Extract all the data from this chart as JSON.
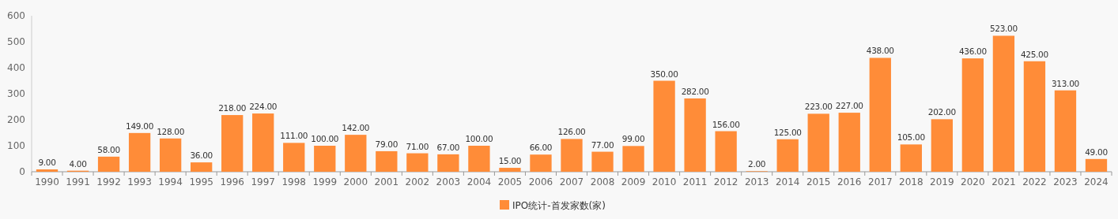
{
  "chart_data": {
    "type": "bar",
    "categories": [
      "1990",
      "1991",
      "1992",
      "1993",
      "1994",
      "1995",
      "1996",
      "1997",
      "1998",
      "1999",
      "2000",
      "2001",
      "2002",
      "2003",
      "2004",
      "2005",
      "2006",
      "2007",
      "2008",
      "2009",
      "2010",
      "2011",
      "2012",
      "2013",
      "2014",
      "2015",
      "2016",
      "2017",
      "2018",
      "2019",
      "2020",
      "2021",
      "2022",
      "2023",
      "2024"
    ],
    "series": [
      {
        "name": "IPO统计-首发家数(家)",
        "color": "#ff8c38",
        "values": [
          9,
          4,
          58,
          149,
          128,
          36,
          218,
          224,
          111,
          100,
          142,
          79,
          71,
          67,
          100,
          15,
          66,
          126,
          77,
          99,
          350,
          282,
          156,
          2,
          125,
          223,
          227,
          438,
          105,
          202,
          436,
          523,
          425,
          313,
          49
        ],
        "value_labels": [
          "9.00",
          "4.00",
          "58.00",
          "149.00",
          "128.00",
          "36.00",
          "218.00",
          "224.00",
          "111.00",
          "100.00",
          "142.00",
          "79.00",
          "71.00",
          "67.00",
          "100.00",
          "15.00",
          "66.00",
          "126.00",
          "77.00",
          "99.00",
          "350.00",
          "282.00",
          "156.00",
          "2.00",
          "125.00",
          "223.00",
          "227.00",
          "438.00",
          "105.00",
          "202.00",
          "436.00",
          "523.00",
          "425.00",
          "313.00",
          "49.00"
        ]
      }
    ],
    "ylim": [
      0,
      600
    ],
    "yticks": [
      0,
      100,
      200,
      300,
      400,
      500,
      600
    ],
    "legend": "bottom"
  }
}
